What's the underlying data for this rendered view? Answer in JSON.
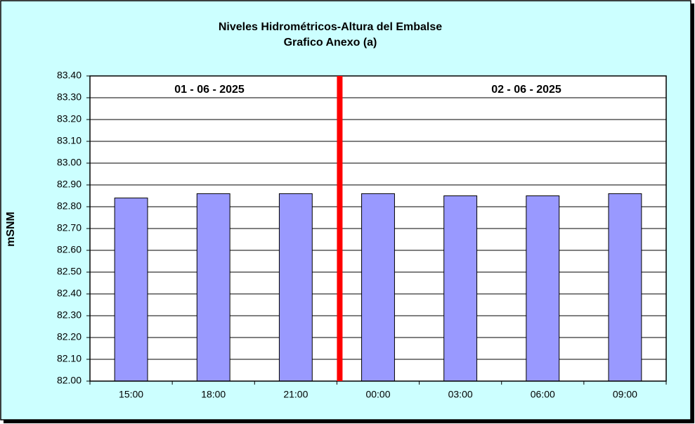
{
  "chart_data": {
    "type": "bar",
    "title": "Niveles Hidrométricos-Altura del Embalse",
    "subtitle": "Grafico Anexo (a)",
    "y_label": "mSNM",
    "annotations": [
      "01 - 06 - 2025",
      "02 - 06 - 2025"
    ],
    "categories": [
      "15:00",
      "18:00",
      "21:00",
      "00:00",
      "03:00",
      "06:00",
      "09:00"
    ],
    "values": [
      82.84,
      82.86,
      82.86,
      82.86,
      82.85,
      82.85,
      82.86
    ],
    "color": "#9999ff",
    "ylim": [
      82,
      83.4
    ],
    "yticks": [
      {
        "value": 82,
        "label": "82.00"
      },
      {
        "value": 82.1,
        "label": "82.10"
      },
      {
        "value": 82.2,
        "label": "82.20"
      },
      {
        "value": 82.3,
        "label": "82.30"
      },
      {
        "value": 82.4,
        "label": "82.40"
      },
      {
        "value": 82.5,
        "label": "82.50"
      },
      {
        "value": 82.6,
        "label": "82.60"
      },
      {
        "value": 82.7,
        "label": "82.70"
      },
      {
        "value": 82.8,
        "label": "82.80"
      },
      {
        "value": 82.9,
        "label": "82.90"
      },
      {
        "value": 83,
        "label": "83.00"
      },
      {
        "value": 83.1,
        "label": "83.10"
      },
      {
        "value": 83.2,
        "label": "83.20"
      },
      {
        "value": 83.3,
        "label": "83.30"
      },
      {
        "value": 83.4,
        "label": "83.40"
      }
    ],
    "grid": true
  }
}
